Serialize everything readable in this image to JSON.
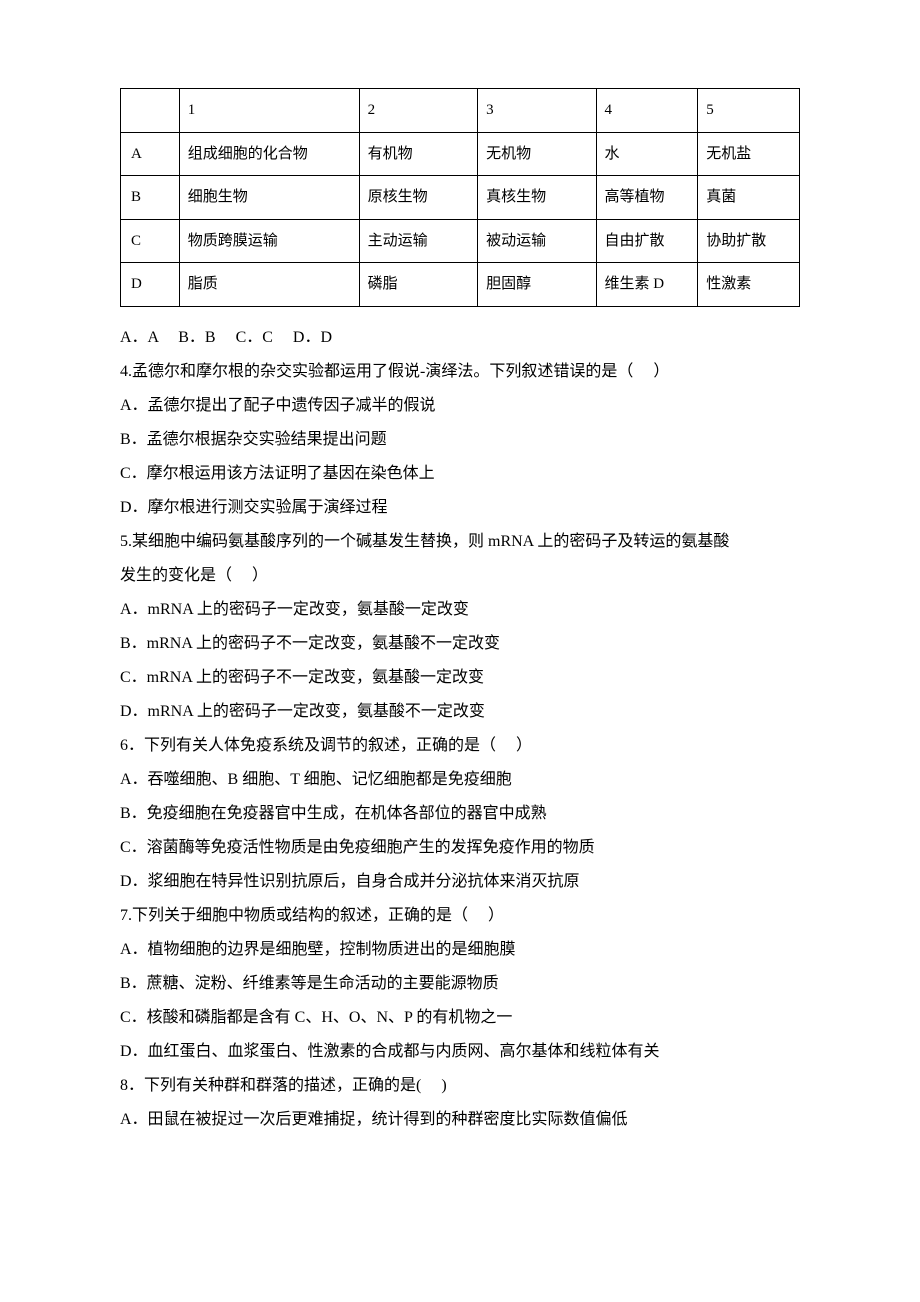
{
  "table": {
    "header": [
      "",
      "1",
      "2",
      "3",
      "4",
      "5"
    ],
    "rows": [
      [
        "A",
        "组成细胞的化合物",
        "有机物",
        "无机物",
        "水",
        "无机盐"
      ],
      [
        "B",
        "细胞生物",
        "原核生物",
        "真核生物",
        "高等植物",
        "真菌"
      ],
      [
        "C",
        "物质跨膜运输",
        "主动运输",
        "被动运输",
        "自由扩散",
        "协助扩散"
      ],
      [
        "D",
        "脂质",
        "磷脂",
        "胆固醇",
        "维生素 D",
        "性激素"
      ]
    ]
  },
  "answer_choices_row": "A．A     B．B     C．C     D．D",
  "q4": {
    "stem": "4.孟德尔和摩尔根的杂交实验都运用了假说-演绎法。下列叙述错误的是（     ）",
    "opts": [
      "A．孟德尔提出了配子中遗传因子减半的假说",
      "B．孟德尔根据杂交实验结果提出问题",
      "C．摩尔根运用该方法证明了基因在染色体上",
      "D．摩尔根进行测交实验属于演绎过程"
    ]
  },
  "q5": {
    "stem1": "5.某细胞中编码氨基酸序列的一个碱基发生替换，则 mRNA 上的密码子及转运的氨基酸",
    "stem2": "发生的变化是（     ）",
    "opts": [
      "A．mRNA 上的密码子一定改变，氨基酸一定改变",
      "B．mRNA 上的密码子不一定改变，氨基酸不一定改变",
      "C．mRNA 上的密码子不一定改变，氨基酸一定改变",
      "D．mRNA 上的密码子一定改变，氨基酸不一定改变"
    ]
  },
  "q6": {
    "stem": "6．下列有关人体免疫系统及调节的叙述，正确的是（     ）",
    "opts": [
      "A．吞噬细胞、B 细胞、T 细胞、记忆细胞都是免疫细胞",
      "B．免疫细胞在免疫器官中生成，在机体各部位的器官中成熟",
      "C．溶菌酶等免疫活性物质是由免疫细胞产生的发挥免疫作用的物质",
      "D．浆细胞在特异性识别抗原后，自身合成并分泌抗体来消灭抗原"
    ]
  },
  "q7": {
    "stem": "7.下列关于细胞中物质或结构的叙述，正确的是（     ）",
    "opts": [
      "A．植物细胞的边界是细胞壁，控制物质进出的是细胞膜",
      "B．蔗糖、淀粉、纤维素等是生命活动的主要能源物质",
      "C．核酸和磷脂都是含有 C、H、O、N、P 的有机物之一",
      "D．血红蛋白、血浆蛋白、性激素的合成都与内质网、高尔基体和线粒体有关"
    ]
  },
  "q8": {
    "stem": "8．下列有关种群和群落的描述，正确的是(     )",
    "opts": [
      "A．田鼠在被捉过一次后更难捕捉，统计得到的种群密度比实际数值偏低"
    ]
  }
}
